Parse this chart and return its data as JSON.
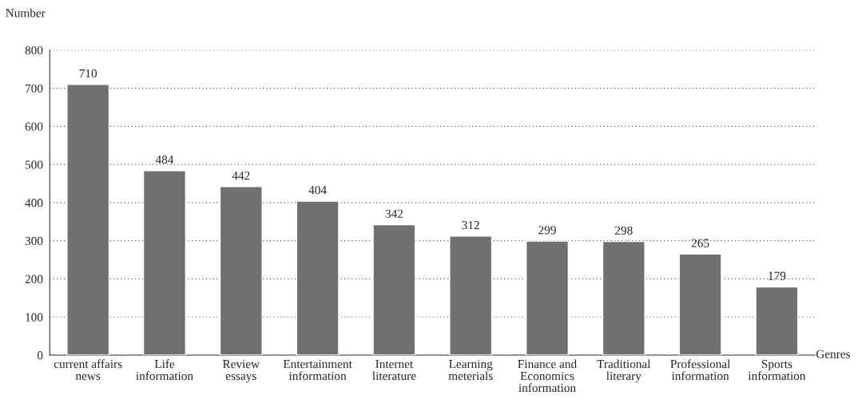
{
  "chart_data": {
    "type": "bar",
    "xlabel": "Genres",
    "ylabel": "Number",
    "categories": [
      "current affairs\nnews",
      "Life\ninformation",
      "Review\nessays",
      "Entertainment\ninformation",
      "Internet\nliterature",
      "Learning\nmeterials",
      "Finance and\nEconomics\ninformation",
      "Traditional\nliterary",
      "Professional\ninformation",
      "Sports\ninformation"
    ],
    "values": [
      710,
      484,
      442,
      404,
      342,
      312,
      299,
      298,
      265,
      179
    ],
    "color": "#6f7072",
    "ylim": [
      0,
      800
    ],
    "yticks": [
      0,
      100,
      200,
      300,
      400,
      500,
      600,
      700,
      800
    ],
    "grid": "y",
    "data_labels": true,
    "legend": false
  }
}
